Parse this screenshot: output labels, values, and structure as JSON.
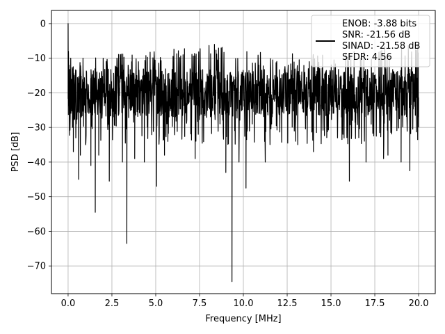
{
  "chart_data": {
    "type": "line",
    "xlabel": "Frequency [MHz]",
    "ylabel": "PSD [dB]",
    "xlim": [
      -0.95,
      20.95
    ],
    "ylim": [
      -78,
      3.8
    ],
    "x_ticks": [
      0.0,
      2.5,
      5.0,
      7.5,
      10.0,
      12.5,
      15.0,
      17.5,
      20.0
    ],
    "x_tick_labels": [
      "0.0",
      "2.5",
      "5.0",
      "7.5",
      "10.0",
      "12.5",
      "15.0",
      "17.5",
      "20.0"
    ],
    "y_ticks": [
      0,
      -10,
      -20,
      -30,
      -40,
      -50,
      -60,
      -70
    ],
    "y_tick_labels": [
      "0",
      "−10",
      "−20",
      "−30",
      "−40",
      "−50",
      "−60",
      "−70"
    ],
    "grid": true,
    "legend_position": "top-right",
    "line_color": "#000000",
    "series": [
      {
        "legend_lines": [
          "ENOB: -3.88 bits",
          "SNR: -21.56 dB",
          "SINAD: -21.58 dB",
          "SFDR: 4.56"
        ],
        "noise_floor_band": [
          -27,
          -13
        ],
        "noise_upper_envelope_points": [
          [
            0.0,
            -10
          ],
          [
            2.5,
            -9
          ],
          [
            5.0,
            -8
          ],
          [
            8.0,
            -6
          ],
          [
            10.0,
            -8
          ],
          [
            15.0,
            -9
          ],
          [
            20.0,
            -5
          ]
        ],
        "points": [
          [
            0.0,
            0
          ],
          [
            0.02,
            -8
          ],
          [
            0.05,
            -12
          ],
          [
            0.1,
            -27
          ],
          [
            0.15,
            -10
          ],
          [
            0.2,
            -22
          ],
          [
            0.25,
            -30
          ],
          [
            0.3,
            -37
          ],
          [
            0.35,
            -15
          ],
          [
            0.45,
            -28
          ],
          [
            0.6,
            -45
          ],
          [
            0.7,
            -38
          ],
          [
            0.85,
            -10
          ],
          [
            1.0,
            -35
          ],
          [
            1.3,
            -41
          ],
          [
            1.55,
            -54.5
          ],
          [
            1.75,
            -38
          ],
          [
            2.0,
            -10
          ],
          [
            2.35,
            -45.5
          ],
          [
            3.1,
            -40
          ],
          [
            3.35,
            -63.5
          ],
          [
            3.8,
            -39
          ],
          [
            4.35,
            -40
          ],
          [
            5.05,
            -47
          ],
          [
            5.5,
            -38
          ],
          [
            7.25,
            -39
          ],
          [
            8.35,
            -6
          ],
          [
            9.0,
            -43
          ],
          [
            9.35,
            -74.5
          ],
          [
            9.75,
            -40
          ],
          [
            10.15,
            -47.5
          ],
          [
            11.25,
            -40
          ],
          [
            14.0,
            -37
          ],
          [
            16.05,
            -45.5
          ],
          [
            17.0,
            -40
          ],
          [
            18.0,
            -39
          ],
          [
            18.25,
            -38
          ],
          [
            19.0,
            -40
          ],
          [
            19.5,
            -42.5
          ],
          [
            19.95,
            -6
          ],
          [
            20.0,
            -30
          ]
        ]
      }
    ]
  }
}
